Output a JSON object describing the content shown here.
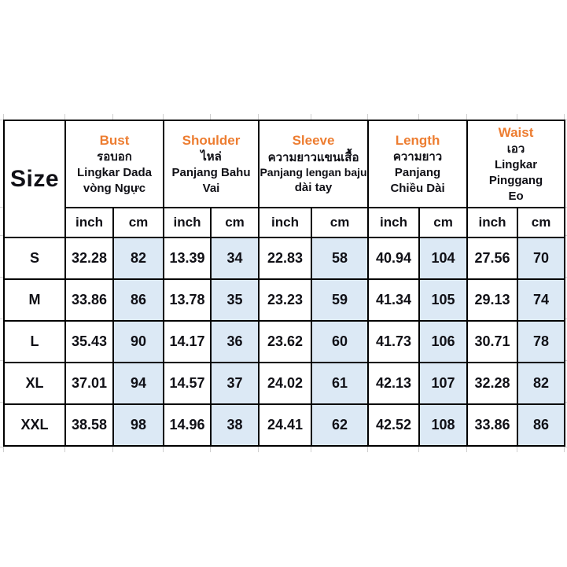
{
  "colors": {
    "accent_orange": "#ED7D31",
    "cm_cell_fill": "#DCE9F5",
    "border": "#000000",
    "gridline_tick": "#cfcfcf",
    "text": "#101016"
  },
  "table": {
    "size_header": "Size",
    "units": [
      "inch",
      "cm"
    ],
    "groups": [
      {
        "name": "Bust",
        "sub": [
          "รอบอก",
          "Lingkar Dada",
          "vòng Ngực"
        ]
      },
      {
        "name": "Shoulder",
        "sub": [
          "ไหล่",
          "Panjang Bahu",
          "Vai"
        ]
      },
      {
        "name": "Sleeve",
        "sub": [
          "ความยาวแขนเสื้อ",
          "Panjang lengan baju",
          "dài tay"
        ]
      },
      {
        "name": "Length",
        "sub": [
          "ความยาว",
          "Panjang",
          "Chiều Dài"
        ]
      },
      {
        "name": "Waist",
        "sub": [
          "เอว",
          "Lingkar Pinggang",
          "Eo"
        ]
      }
    ],
    "rows": [
      {
        "size": "S",
        "values": [
          "32.28",
          "82",
          "13.39",
          "34",
          "22.83",
          "58",
          "40.94",
          "104",
          "27.56",
          "70"
        ]
      },
      {
        "size": "M",
        "values": [
          "33.86",
          "86",
          "13.78",
          "35",
          "23.23",
          "59",
          "41.34",
          "105",
          "29.13",
          "74"
        ]
      },
      {
        "size": "L",
        "values": [
          "35.43",
          "90",
          "14.17",
          "36",
          "23.62",
          "60",
          "41.73",
          "106",
          "30.71",
          "78"
        ]
      },
      {
        "size": "XL",
        "values": [
          "37.01",
          "94",
          "14.57",
          "37",
          "24.02",
          "61",
          "42.13",
          "107",
          "32.28",
          "82"
        ]
      },
      {
        "size": "XXL",
        "values": [
          "38.58",
          "98",
          "14.96",
          "38",
          "24.41",
          "62",
          "42.52",
          "108",
          "33.86",
          "86"
        ]
      }
    ]
  },
  "chart_data": {
    "type": "table",
    "columns": [
      "Size",
      "Bust (inch)",
      "Bust (cm)",
      "Shoulder (inch)",
      "Shoulder (cm)",
      "Sleeve (inch)",
      "Sleeve (cm)",
      "Length (inch)",
      "Length (cm)",
      "Waist (inch)",
      "Waist (cm)"
    ],
    "column_translations": {
      "Bust": [
        "รอบอก",
        "Lingkar Dada",
        "vòng Ngực"
      ],
      "Shoulder": [
        "ไหล่",
        "Panjang Bahu",
        "Vai"
      ],
      "Sleeve": [
        "ความยาวแขนเสื้อ",
        "Panjang lengan baju",
        "dài tay"
      ],
      "Length": [
        "ความยาว",
        "Panjang",
        "Chiều Dài"
      ],
      "Waist": [
        "เอว",
        "Lingkar Pinggang",
        "Eo"
      ]
    },
    "rows": [
      [
        "S",
        32.28,
        82,
        13.39,
        34,
        22.83,
        58,
        40.94,
        104,
        27.56,
        70
      ],
      [
        "M",
        33.86,
        86,
        13.78,
        35,
        23.23,
        59,
        41.34,
        105,
        29.13,
        74
      ],
      [
        "L",
        35.43,
        90,
        14.17,
        36,
        23.62,
        60,
        41.73,
        106,
        30.71,
        78
      ],
      [
        "XL",
        37.01,
        94,
        14.57,
        37,
        24.02,
        61,
        42.13,
        107,
        32.28,
        82
      ],
      [
        "XXL",
        38.58,
        98,
        14.96,
        38,
        24.41,
        62,
        42.52,
        108,
        33.86,
        86
      ]
    ],
    "legend_position": "none",
    "grid": true
  }
}
